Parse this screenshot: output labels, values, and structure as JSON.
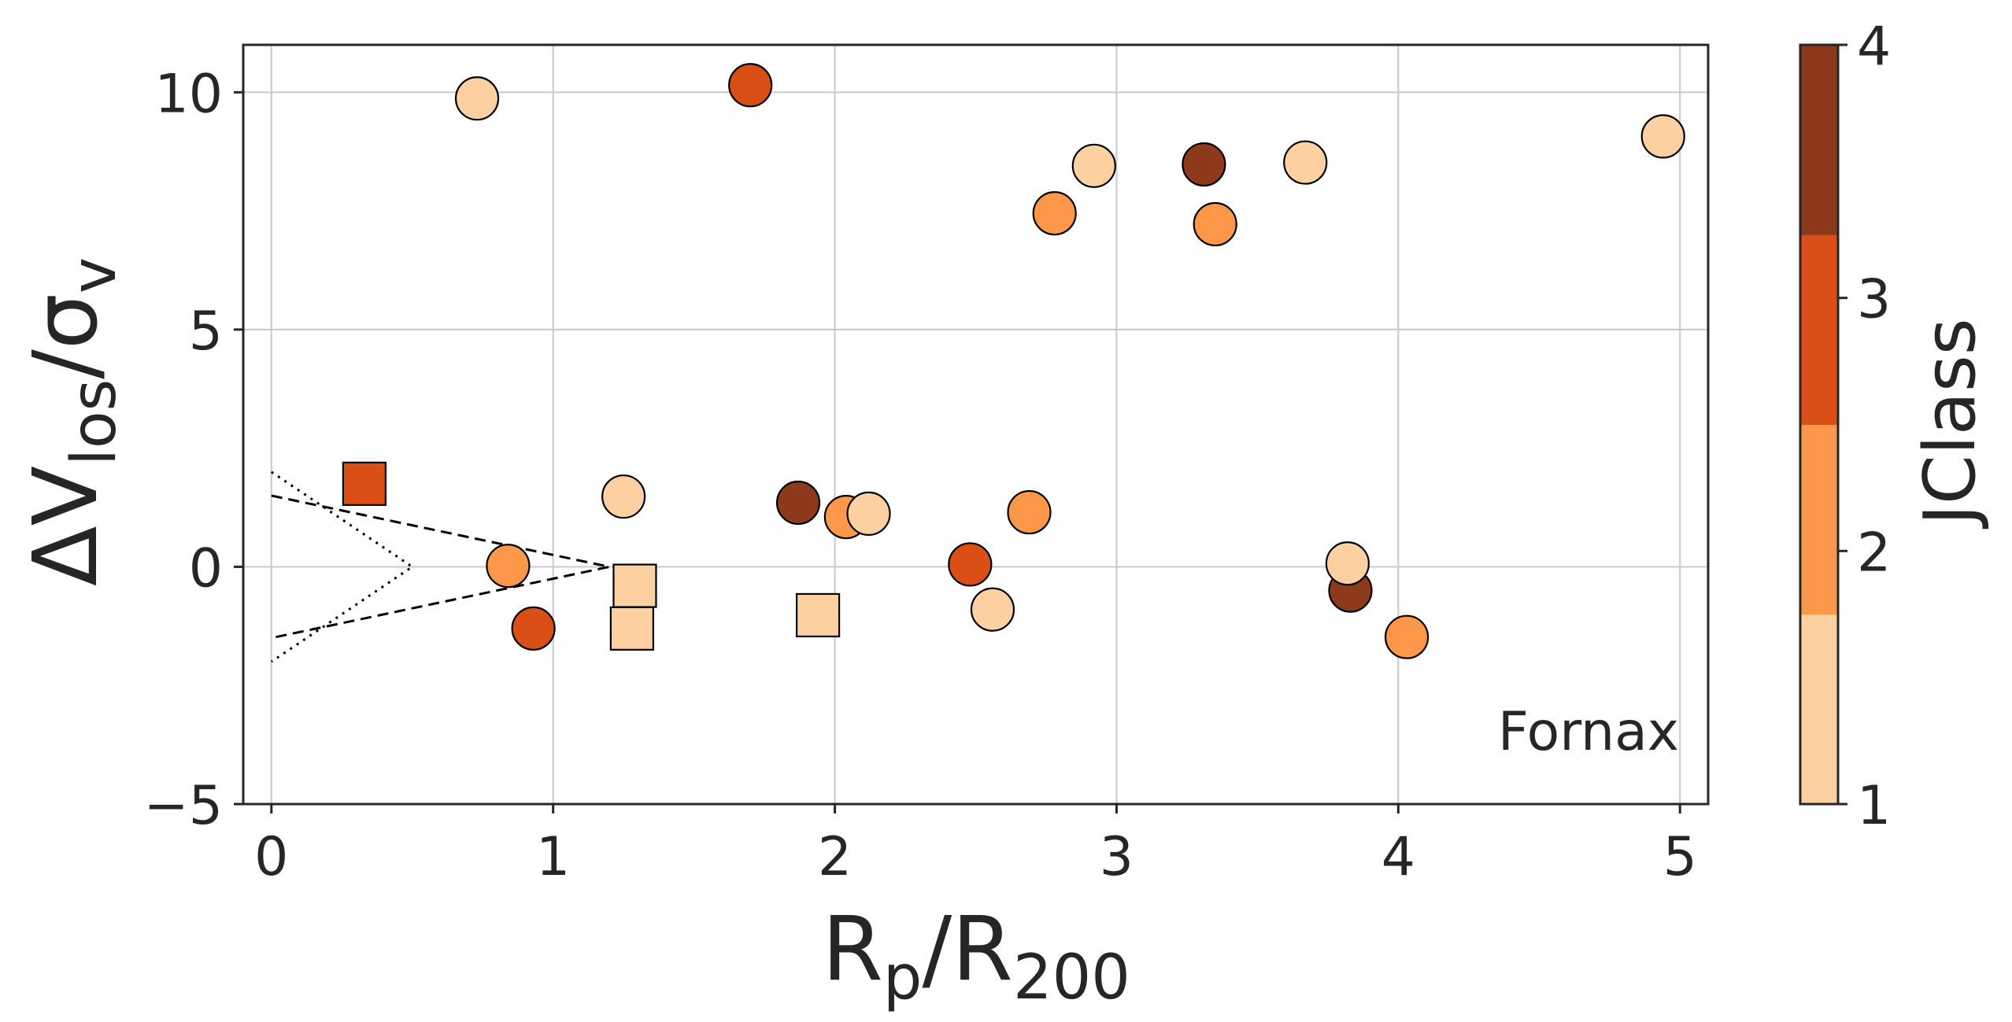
{
  "chart_data": {
    "type": "scatter",
    "xlabel": {
      "base": "R",
      "sub": "p",
      "mid": "/R",
      "sub2": "200"
    },
    "ylabel": {
      "pre": "ΔV",
      "sub": "los",
      "mid": "/σ",
      "sub2": "v"
    },
    "xlim": [
      -0.1,
      5.1
    ],
    "ylim": [
      -5,
      11
    ],
    "xticks": [
      0,
      1,
      2,
      3,
      4,
      5
    ],
    "yticks": [
      -5,
      0,
      5,
      10
    ],
    "xtick_labels": [
      "0",
      "1",
      "2",
      "3",
      "4",
      "5"
    ],
    "ytick_labels": [
      "−5",
      "0",
      "5",
      "10"
    ],
    "grid": true,
    "annotation": "Fornax",
    "colorbar": {
      "label": "JClass",
      "ticks": [
        "1",
        "2",
        "3",
        "4"
      ],
      "colors": [
        "#fdd0a2",
        "#fd974a",
        "#d94f15",
        "#8c3a1b"
      ]
    },
    "class_colors": {
      "1": "#fdd0a2",
      "2": "#fd974a",
      "3": "#d94f15",
      "4": "#8c3a1b"
    },
    "points": [
      {
        "x": 0.73,
        "y": 9.87,
        "jclass": 1,
        "marker": "circle"
      },
      {
        "x": 1.7,
        "y": 10.15,
        "jclass": 3,
        "marker": "circle"
      },
      {
        "x": 2.78,
        "y": 7.45,
        "jclass": 2,
        "marker": "circle"
      },
      {
        "x": 2.92,
        "y": 8.45,
        "jclass": 1,
        "marker": "circle"
      },
      {
        "x": 3.31,
        "y": 8.48,
        "jclass": 4,
        "marker": "circle"
      },
      {
        "x": 3.35,
        "y": 7.22,
        "jclass": 2,
        "marker": "circle"
      },
      {
        "x": 3.67,
        "y": 8.52,
        "jclass": 1,
        "marker": "circle"
      },
      {
        "x": 4.94,
        "y": 9.07,
        "jclass": 1,
        "marker": "circle"
      },
      {
        "x": 0.33,
        "y": 1.75,
        "jclass": 3,
        "marker": "square"
      },
      {
        "x": 0.84,
        "y": 0.02,
        "jclass": 2,
        "marker": "circle"
      },
      {
        "x": 0.93,
        "y": -1.3,
        "jclass": 3,
        "marker": "circle"
      },
      {
        "x": 1.25,
        "y": 1.48,
        "jclass": 1,
        "marker": "circle"
      },
      {
        "x": 1.29,
        "y": -0.4,
        "jclass": 1,
        "marker": "square"
      },
      {
        "x": 1.28,
        "y": -1.3,
        "jclass": 1,
        "marker": "square"
      },
      {
        "x": 1.94,
        "y": -1.02,
        "jclass": 1,
        "marker": "square"
      },
      {
        "x": 1.87,
        "y": 1.35,
        "jclass": 4,
        "marker": "circle"
      },
      {
        "x": 2.04,
        "y": 1.05,
        "jclass": 2,
        "marker": "circle"
      },
      {
        "x": 2.12,
        "y": 1.12,
        "jclass": 1,
        "marker": "circle"
      },
      {
        "x": 2.48,
        "y": 0.05,
        "jclass": 3,
        "marker": "circle"
      },
      {
        "x": 2.56,
        "y": -0.9,
        "jclass": 1,
        "marker": "circle"
      },
      {
        "x": 2.69,
        "y": 1.15,
        "jclass": 2,
        "marker": "circle"
      },
      {
        "x": 3.83,
        "y": -0.5,
        "jclass": 4,
        "marker": "circle"
      },
      {
        "x": 3.82,
        "y": 0.07,
        "jclass": 1,
        "marker": "circle"
      },
      {
        "x": 4.03,
        "y": -1.48,
        "jclass": 2,
        "marker": "circle"
      }
    ],
    "reference_lines": [
      {
        "style": "dashed",
        "x": [
          0,
          1.2,
          0
        ],
        "y": [
          1.5,
          0,
          -1.5
        ]
      },
      {
        "style": "dotted",
        "x": [
          0,
          0.5,
          0
        ],
        "y": [
          2,
          0,
          -2
        ]
      }
    ]
  }
}
